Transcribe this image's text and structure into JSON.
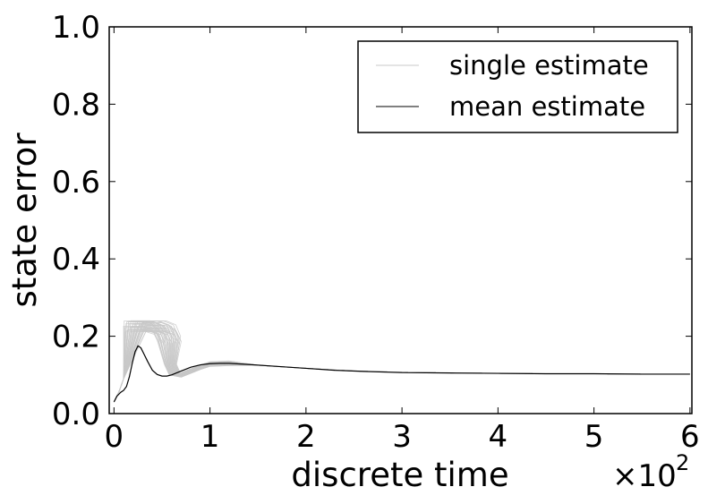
{
  "chart_data": {
    "type": "line",
    "title": "",
    "xlabel": "discrete time",
    "ylabel": "state error",
    "x_multiplier_label": "×10",
    "x_multiplier_exponent": "2",
    "xlim": [
      -0.05,
      6.02
    ],
    "ylim": [
      0.0,
      1.0
    ],
    "x_ticks": [
      0,
      1,
      2,
      3,
      4,
      5,
      6
    ],
    "x_tick_labels": [
      "0",
      "1",
      "2",
      "3",
      "4",
      "5",
      "6"
    ],
    "y_ticks": [
      0.0,
      0.2,
      0.4,
      0.6,
      0.8,
      1.0
    ],
    "y_tick_labels": [
      "0.0",
      "0.2",
      "0.4",
      "0.6",
      "0.8",
      "1.0"
    ],
    "grid": false,
    "legend_position": "top-right",
    "series": [
      {
        "name": "single estimate",
        "color": "#c8c8c8",
        "note_ensemble": "many individual runs, peaks between x=0.15 and x=0.5",
        "x": [
          0.0,
          0.05,
          0.1,
          0.15,
          0.2,
          0.25,
          0.3,
          0.35,
          0.4,
          0.45,
          0.5,
          0.55,
          0.6,
          0.7,
          0.8,
          0.9,
          1.0,
          1.2,
          1.5,
          2.0,
          2.5,
          3.0,
          3.5,
          4.0,
          4.5,
          5.0,
          5.5,
          6.0
        ],
        "values": [
          0.03,
          0.055,
          0.09,
          0.24,
          0.24,
          0.24,
          0.24,
          0.24,
          0.235,
          0.23,
          0.2,
          0.13,
          0.1,
          0.1,
          0.11,
          0.12,
          0.128,
          0.13,
          0.125,
          0.117,
          0.11,
          0.107,
          0.105,
          0.104,
          0.103,
          0.103,
          0.102,
          0.102
        ]
      },
      {
        "name": "mean estimate",
        "color": "#000000",
        "x": [
          0.0,
          0.03,
          0.07,
          0.1,
          0.13,
          0.16,
          0.19,
          0.22,
          0.25,
          0.28,
          0.31,
          0.35,
          0.4,
          0.45,
          0.5,
          0.55,
          0.6,
          0.7,
          0.8,
          0.9,
          1.0,
          1.1,
          1.2,
          1.4,
          1.7,
          2.0,
          2.3,
          2.6,
          3.0,
          3.5,
          4.0,
          4.5,
          5.0,
          5.5,
          6.0
        ],
        "values": [
          0.03,
          0.045,
          0.055,
          0.06,
          0.07,
          0.095,
          0.13,
          0.16,
          0.175,
          0.17,
          0.155,
          0.135,
          0.112,
          0.101,
          0.097,
          0.097,
          0.1,
          0.11,
          0.12,
          0.126,
          0.129,
          0.13,
          0.13,
          0.127,
          0.122,
          0.117,
          0.112,
          0.109,
          0.106,
          0.105,
          0.104,
          0.103,
          0.103,
          0.102,
          0.102
        ]
      }
    ]
  }
}
